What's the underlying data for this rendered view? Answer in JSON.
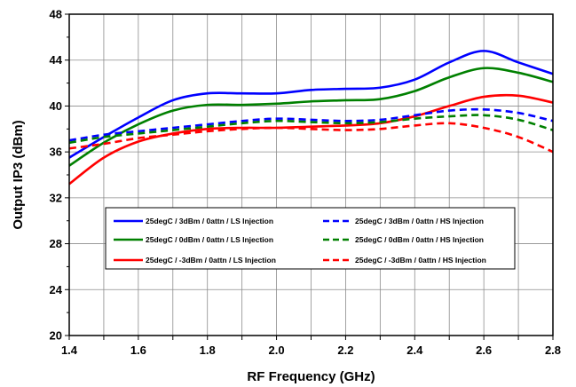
{
  "chart_data": {
    "type": "line",
    "xlabel": "RF Frequency (GHz)",
    "ylabel": "Output IP3 (dBm)",
    "xlim": [
      1.4,
      2.8
    ],
    "ylim": [
      20,
      48
    ],
    "xticks": [
      "1.4",
      "1.6",
      "1.8",
      "2.0",
      "2.2",
      "2.4",
      "2.6",
      "2.8"
    ],
    "yticks": [
      "20",
      "24",
      "28",
      "32",
      "36",
      "40",
      "44",
      "48"
    ],
    "grid": true,
    "legend_position": "lower-center",
    "series": [
      {
        "name": "25degC / 3dBm / 0attn / LS Injection",
        "color": "#0000ff",
        "dash": "solid",
        "x": [
          1.4,
          1.5,
          1.6,
          1.7,
          1.8,
          1.9,
          2.0,
          2.1,
          2.2,
          2.3,
          2.4,
          2.5,
          2.6,
          2.7,
          2.8
        ],
        "y": [
          35.5,
          37.3,
          39.0,
          40.5,
          41.1,
          41.1,
          41.1,
          41.4,
          41.5,
          41.6,
          42.3,
          43.8,
          44.8,
          43.8,
          42.8
        ]
      },
      {
        "name": "25degC / 0dBm / 0attn / LS Injection",
        "color": "#008000",
        "dash": "solid",
        "x": [
          1.4,
          1.5,
          1.6,
          1.7,
          1.8,
          1.9,
          2.0,
          2.1,
          2.2,
          2.3,
          2.4,
          2.5,
          2.6,
          2.7,
          2.8
        ],
        "y": [
          34.8,
          36.8,
          38.4,
          39.6,
          40.1,
          40.1,
          40.2,
          40.4,
          40.5,
          40.6,
          41.3,
          42.5,
          43.3,
          42.9,
          42.1
        ]
      },
      {
        "name": "25degC / -3dBm / 0attn / LS Injection",
        "color": "#ff0000",
        "dash": "solid",
        "x": [
          1.4,
          1.5,
          1.6,
          1.7,
          1.8,
          1.9,
          2.0,
          2.1,
          2.2,
          2.3,
          2.4,
          2.5,
          2.6,
          2.7,
          2.8
        ],
        "y": [
          33.2,
          35.5,
          36.9,
          37.6,
          38.0,
          38.1,
          38.1,
          38.2,
          38.3,
          38.5,
          39.1,
          40.0,
          40.8,
          40.9,
          40.3
        ]
      },
      {
        "name": "25degC / 3dBm / 0attn / HS Injection",
        "color": "#0000ff",
        "dash": "dashed",
        "x": [
          1.4,
          1.5,
          1.6,
          1.7,
          1.8,
          1.9,
          2.0,
          2.1,
          2.2,
          2.3,
          2.4,
          2.5,
          2.6,
          2.7,
          2.8
        ],
        "y": [
          37.0,
          37.5,
          37.8,
          38.1,
          38.4,
          38.7,
          38.9,
          38.8,
          38.7,
          38.8,
          39.2,
          39.6,
          39.7,
          39.4,
          38.7
        ]
      },
      {
        "name": "25degC / 0dBm / 0attn / HS Injection",
        "color": "#008000",
        "dash": "dashed",
        "x": [
          1.4,
          1.5,
          1.6,
          1.7,
          1.8,
          1.9,
          2.0,
          2.1,
          2.2,
          2.3,
          2.4,
          2.5,
          2.6,
          2.7,
          2.8
        ],
        "y": [
          36.8,
          37.3,
          37.6,
          37.9,
          38.2,
          38.5,
          38.7,
          38.6,
          38.5,
          38.6,
          38.9,
          39.1,
          39.2,
          38.8,
          37.9
        ]
      },
      {
        "name": "25degC / -3dBm / 0attn / HS Injection",
        "color": "#ff0000",
        "dash": "dashed",
        "x": [
          1.4,
          1.5,
          1.6,
          1.7,
          1.8,
          1.9,
          2.0,
          2.1,
          2.2,
          2.3,
          2.4,
          2.5,
          2.6,
          2.7,
          2.8
        ],
        "y": [
          36.3,
          36.7,
          37.2,
          37.5,
          37.8,
          38.0,
          38.1,
          38.0,
          37.9,
          38.0,
          38.3,
          38.5,
          38.1,
          37.3,
          36.0
        ]
      }
    ]
  }
}
